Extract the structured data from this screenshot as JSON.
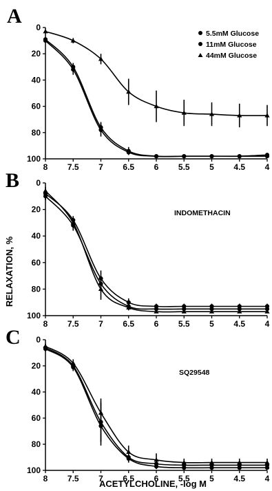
{
  "ylabel": "RELAXATION, %",
  "xlabel": "ACETYLCHOLINE, -log M",
  "legend": {
    "placement": "top-right",
    "entries": [
      {
        "label": "5.5mM Glucose",
        "marker": "circle"
      },
      {
        "label": "11mM Glucose",
        "marker": "circle"
      },
      {
        "label": "44mM Glucose",
        "marker": "triangle"
      }
    ]
  },
  "chart_data": [
    {
      "type": "line",
      "panel": "A",
      "annotation": "",
      "x": [
        8,
        7.5,
        7,
        6.5,
        6,
        5.5,
        5,
        4.5,
        4
      ],
      "x_tick_labels": [
        "8",
        "7.5",
        "7",
        "6.5",
        "6",
        "5.5",
        "5",
        "4.5",
        "4"
      ],
      "y_tick_labels": [
        "0",
        "20",
        "40",
        "60",
        "80",
        "100"
      ],
      "xlim": [
        8,
        4
      ],
      "ylim": [
        0,
        100
      ],
      "y_inverted": true,
      "grid": false,
      "series": [
        {
          "name": "5.5mM Glucose",
          "marker": "circle",
          "values": [
            9,
            30,
            76,
            94,
            98,
            98,
            98,
            98,
            97
          ],
          "errors": [
            1,
            3,
            4,
            3,
            1,
            1,
            1,
            1,
            1
          ]
        },
        {
          "name": "11mM Glucose",
          "marker": "circle",
          "values": [
            10,
            32,
            78,
            95,
            98,
            98,
            98,
            98,
            98
          ],
          "errors": [
            1,
            4,
            5,
            2,
            1,
            1,
            1,
            1,
            1
          ]
        },
        {
          "name": "44mM Glucose",
          "marker": "triangle",
          "values": [
            3,
            10,
            24,
            49,
            60,
            65,
            66,
            67,
            67
          ],
          "errors": [
            1,
            2,
            4,
            10,
            12,
            10,
            9,
            9,
            8
          ]
        }
      ]
    },
    {
      "type": "line",
      "panel": "B",
      "annotation": "INDOMETHACIN",
      "x": [
        8,
        7.5,
        7,
        6.5,
        6,
        5.5,
        5,
        4.5,
        4
      ],
      "x_tick_labels": [
        "8",
        "7.5",
        "7",
        "6.5",
        "6",
        "5.5",
        "5",
        "4.5",
        "4"
      ],
      "y_tick_labels": [
        "0",
        "20",
        "40",
        "60",
        "80",
        "100"
      ],
      "xlim": [
        8,
        4
      ],
      "ylim": [
        0,
        100
      ],
      "y_inverted": true,
      "grid": false,
      "series": [
        {
          "name": "5.5mM Glucose",
          "marker": "circle",
          "values": [
            8,
            28,
            72,
            90,
            93,
            93,
            93,
            93,
            93
          ],
          "errors": [
            3,
            3,
            6,
            3,
            2,
            2,
            2,
            2,
            2
          ]
        },
        {
          "name": "11mM Glucose",
          "marker": "circle",
          "values": [
            10,
            32,
            76,
            93,
            95,
            95,
            95,
            95,
            95
          ],
          "errors": [
            3,
            4,
            6,
            3,
            2,
            2,
            2,
            2,
            2
          ]
        },
        {
          "name": "44mM Glucose",
          "marker": "triangle",
          "values": [
            6,
            30,
            80,
            94,
            97,
            97,
            97,
            97,
            97
          ],
          "errors": [
            3,
            4,
            8,
            2,
            1,
            1,
            1,
            1,
            1
          ]
        }
      ]
    },
    {
      "type": "line",
      "panel": "C",
      "annotation": "SQ29548",
      "x": [
        8,
        7.5,
        7,
        6.5,
        6,
        5.5,
        5,
        4.5,
        4
      ],
      "x_tick_labels": [
        "8",
        "7.5",
        "7",
        "6.5",
        "6",
        "5.5",
        "5",
        "4.5",
        "4"
      ],
      "y_tick_labels": [
        "0",
        "20",
        "40",
        "60",
        "80",
        "100"
      ],
      "xlim": [
        8,
        4
      ],
      "ylim": [
        0,
        100
      ],
      "y_inverted": true,
      "grid": false,
      "series": [
        {
          "name": "5.5mM Glucose",
          "marker": "circle",
          "values": [
            6,
            20,
            63,
            90,
            95,
            96,
            96,
            96,
            96
          ],
          "errors": [
            2,
            3,
            18,
            4,
            2,
            2,
            2,
            2,
            2
          ]
        },
        {
          "name": "11mM Glucose",
          "marker": "circle",
          "values": [
            7,
            21,
            66,
            91,
            97,
            98,
            98,
            98,
            98
          ],
          "errors": [
            2,
            3,
            12,
            3,
            2,
            1,
            1,
            1,
            1
          ]
        },
        {
          "name": "44mM Glucose",
          "marker": "triangle",
          "values": [
            5,
            18,
            56,
            86,
            92,
            94,
            94,
            94,
            94
          ],
          "errors": [
            2,
            3,
            8,
            5,
            5,
            3,
            3,
            3,
            3
          ]
        }
      ]
    }
  ]
}
